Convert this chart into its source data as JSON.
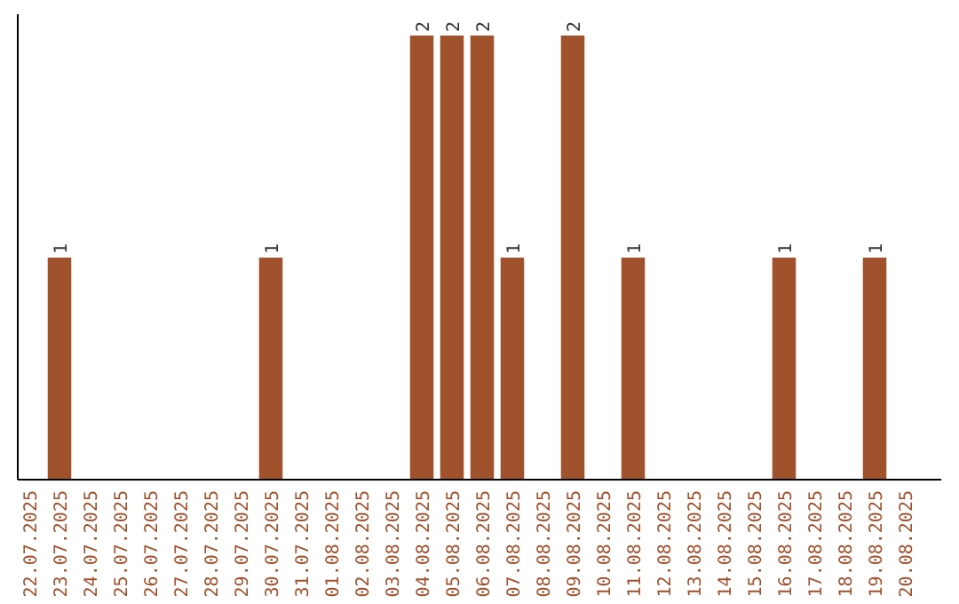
{
  "chart_data": {
    "type": "bar",
    "categories": [
      "22.07.2025",
      "23.07.2025",
      "24.07.2025",
      "25.07.2025",
      "26.07.2025",
      "27.07.2025",
      "28.07.2025",
      "29.07.2025",
      "30.07.2025",
      "31.07.2025",
      "01.08.2025",
      "02.08.2025",
      "03.08.2025",
      "04.08.2025",
      "05.08.2025",
      "06.08.2025",
      "07.08.2025",
      "08.08.2025",
      "09.08.2025",
      "10.08.2025",
      "11.08.2025",
      "12.08.2025",
      "13.08.2025",
      "14.08.2025",
      "15.08.2025",
      "16.08.2025",
      "17.08.2025",
      "18.08.2025",
      "19.08.2025",
      "20.08.2025"
    ],
    "values": [
      0,
      1,
      0,
      0,
      0,
      0,
      0,
      0,
      1,
      0,
      0,
      0,
      0,
      2,
      2,
      2,
      1,
      0,
      2,
      0,
      1,
      0,
      0,
      0,
      0,
      1,
      0,
      0,
      1,
      0
    ],
    "value_labels": [
      null,
      "1",
      null,
      null,
      null,
      null,
      null,
      null,
      "1",
      null,
      null,
      null,
      null,
      "2",
      "2",
      "2",
      "1",
      null,
      "2",
      null,
      "1",
      null,
      null,
      null,
      null,
      "1",
      null,
      null,
      "1",
      null
    ],
    "color": "#a0522d",
    "tick_labels": "x"
  }
}
